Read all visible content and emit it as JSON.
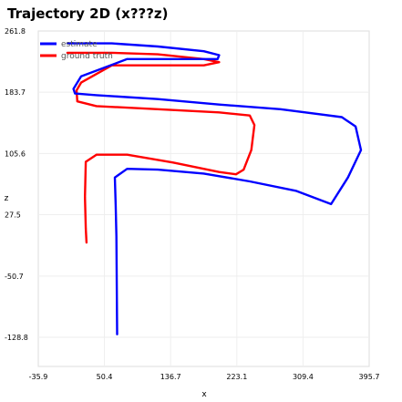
{
  "title": "Trajectory 2D (x???z)",
  "chart_data": {
    "type": "line",
    "xlabel": "x",
    "ylabel": "z",
    "xlim": [
      -35.9,
      395.7
    ],
    "ylim": [
      -166.0,
      261.8
    ],
    "xticks": [
      "-35.9",
      "50.4",
      "136.7",
      "223.1",
      "309.4",
      "395.7"
    ],
    "yticks": [
      "261.8",
      "183.7",
      "105.6",
      "27.5",
      "-50.7",
      "-128.8"
    ],
    "ytick_values": [
      261.8,
      183.7,
      105.6,
      27.5,
      -50.7,
      -128.8
    ],
    "grid": true,
    "legend_position": "top-left",
    "series": [
      {
        "name": "estimate",
        "color": "#0000ff",
        "x": [
          2,
          60,
          120,
          180,
          200,
          198,
          140,
          80,
          20,
          10,
          12,
          40,
          120,
          200,
          280,
          360,
          378,
          385,
          368,
          346,
          300,
          240,
          180,
          120,
          80,
          64,
          65,
          66,
          67
        ],
        "y": [
          246,
          246,
          242,
          236,
          231,
          226,
          226,
          226,
          204,
          188,
          182,
          180,
          175,
          168,
          162,
          152,
          140,
          110,
          75,
          41,
          58,
          70,
          80,
          85,
          86,
          75,
          40,
          0,
          -125
        ]
      },
      {
        "name": "ground truth",
        "color": "#ff0000",
        "x": [
          2,
          60,
          120,
          180,
          200,
          180,
          120,
          60,
          20,
          14,
          15,
          40,
          120,
          200,
          240,
          246,
          242,
          232,
          222,
          200,
          140,
          80,
          40,
          26,
          25,
          26,
          27
        ],
        "y": [
          234,
          234,
          232,
          226,
          222,
          218,
          218,
          218,
          196,
          186,
          172,
          166,
          162,
          158,
          154,
          142,
          110,
          85,
          79,
          82,
          94,
          104,
          104,
          95,
          50,
          10,
          -8
        ]
      }
    ]
  }
}
